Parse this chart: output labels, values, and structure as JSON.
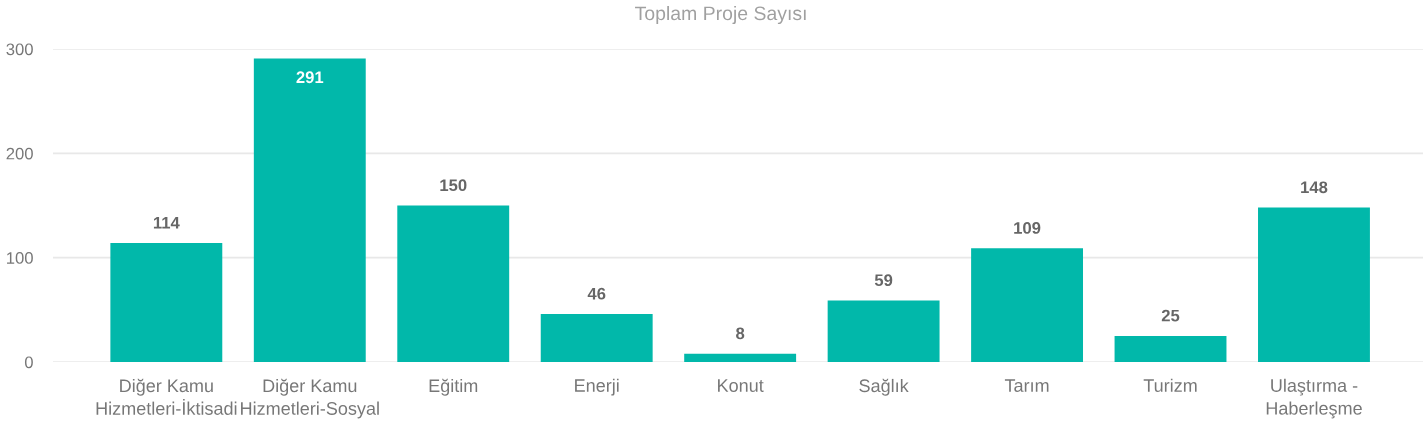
{
  "chart_data": {
    "type": "bar",
    "title": "Toplam Proje Sayısı",
    "categories": [
      "Diğer Kamu Hizmetleri-İktisadi",
      "Diğer Kamu Hizmetleri-Sosyal",
      "Eğitim",
      "Enerji",
      "Konut",
      "Sağlık",
      "Tarım",
      "Turizm",
      "Ulaştırma - Haberleşme"
    ],
    "values": [
      114,
      291,
      150,
      46,
      8,
      59,
      109,
      25,
      148
    ],
    "color": "#01b8aa",
    "ylim": [
      0,
      300
    ],
    "yticks": [
      0,
      100,
      200,
      300
    ],
    "grid": "y",
    "data_labels": true
  }
}
